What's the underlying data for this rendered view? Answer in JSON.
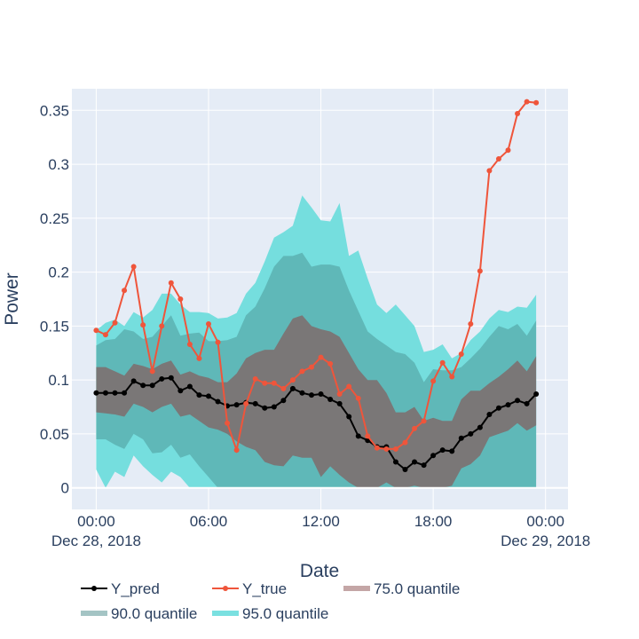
{
  "chart_data": {
    "type": "line",
    "xlabel": "Date",
    "ylabel": "Power",
    "ylim": [
      -0.02,
      0.37
    ],
    "xlim_hours": [
      -1.3,
      25.2
    ],
    "y_ticks": [
      "0",
      "0.05",
      "0.1",
      "0.15",
      "0.2",
      "0.25",
      "0.3",
      "0.35"
    ],
    "x_ticks": [
      {
        "line1": "00:00",
        "line2": "Dec 28, 2018"
      },
      {
        "line1": "06:00",
        "line2": ""
      },
      {
        "line1": "12:00",
        "line2": ""
      },
      {
        "line1": "18:00",
        "line2": ""
      },
      {
        "line1": "00:00",
        "line2": "Dec 29, 2018"
      }
    ],
    "x_hours": [
      0,
      0.5,
      1,
      1.5,
      2,
      2.5,
      3,
      3.5,
      4,
      4.5,
      5,
      5.5,
      6,
      6.5,
      7,
      7.5,
      8,
      8.5,
      9,
      9.5,
      10,
      10.5,
      11,
      11.5,
      12,
      12.5,
      13,
      13.5,
      14,
      14.5,
      15,
      15.5,
      16,
      16.5,
      17,
      17.5,
      18,
      18.5,
      19,
      19.5,
      20,
      20.5,
      21,
      21.5,
      22,
      22.5,
      23,
      23.5
    ],
    "series": [
      {
        "name": "Y_pred",
        "color": "#000000",
        "values": [
          0.088,
          0.088,
          0.088,
          0.088,
          0.099,
          0.095,
          0.095,
          0.101,
          0.102,
          0.09,
          0.094,
          0.086,
          0.085,
          0.08,
          0.076,
          0.077,
          0.079,
          0.078,
          0.074,
          0.075,
          0.081,
          0.092,
          0.088,
          0.086,
          0.087,
          0.082,
          0.078,
          0.066,
          0.048,
          0.044,
          0.038,
          0.038,
          0.024,
          0.017,
          0.024,
          0.021,
          0.03,
          0.035,
          0.034,
          0.046,
          0.05,
          0.056,
          0.068,
          0.074,
          0.077,
          0.081,
          0.078,
          0.087
        ]
      },
      {
        "name": "Y_true",
        "color": "#ef553b",
        "values": [
          0.146,
          0.142,
          0.153,
          0.183,
          0.205,
          0.151,
          0.108,
          0.15,
          0.19,
          0.175,
          0.133,
          0.12,
          0.152,
          0.135,
          0.06,
          0.035,
          0.078,
          0.101,
          0.097,
          0.097,
          0.092,
          0.1,
          0.108,
          0.112,
          0.121,
          0.115,
          0.087,
          0.094,
          0.083,
          0.048,
          0.037,
          0.036,
          0.036,
          0.042,
          0.055,
          0.062,
          0.099,
          0.116,
          0.103,
          0.124,
          0.152,
          0.201,
          0.294,
          0.305,
          0.313,
          0.347,
          0.358,
          0.357
        ]
      }
    ],
    "bands": [
      {
        "name": "95.0 quantile",
        "color": "#75dede",
        "upper": [
          0.146,
          0.153,
          0.156,
          0.15,
          0.163,
          0.158,
          0.165,
          0.18,
          0.18,
          0.17,
          0.163,
          0.163,
          0.162,
          0.157,
          0.158,
          0.162,
          0.18,
          0.19,
          0.21,
          0.232,
          0.237,
          0.243,
          0.271,
          0.26,
          0.248,
          0.247,
          0.264,
          0.215,
          0.22,
          0.194,
          0.17,
          0.162,
          0.17,
          0.16,
          0.15,
          0.126,
          0.128,
          0.133,
          0.12,
          0.125,
          0.137,
          0.145,
          0.157,
          0.165,
          0.163,
          0.168,
          0.167,
          0.179
        ],
        "lower": [
          0.017,
          0.0,
          0.015,
          0.01,
          0.03,
          0.02,
          0.012,
          0.005,
          0.015,
          0.01,
          0.0,
          0.0,
          0.0,
          0.0,
          0.0,
          0.0,
          0.0,
          0.0,
          0.0,
          0.0,
          0.0,
          0.0,
          0.0,
          0.0,
          0.0,
          0.0,
          0.0,
          0.0,
          0.0,
          0.0,
          0.0,
          0.0,
          0.0,
          0.0,
          0.0,
          0.0,
          0.0,
          0.0,
          0.0,
          0.0,
          0.0,
          0.0,
          0.0,
          0.0,
          0.0,
          0.0,
          0.0,
          0.008
        ]
      },
      {
        "name": "90.0 quantile",
        "color": "#5fb8b8",
        "upper": [
          0.132,
          0.137,
          0.138,
          0.147,
          0.145,
          0.138,
          0.14,
          0.15,
          0.16,
          0.141,
          0.143,
          0.144,
          0.136,
          0.136,
          0.137,
          0.14,
          0.16,
          0.168,
          0.185,
          0.205,
          0.215,
          0.215,
          0.218,
          0.205,
          0.207,
          0.207,
          0.205,
          0.183,
          0.164,
          0.145,
          0.138,
          0.132,
          0.126,
          0.124,
          0.116,
          0.098,
          0.11,
          0.109,
          0.109,
          0.112,
          0.12,
          0.129,
          0.14,
          0.15,
          0.147,
          0.152,
          0.141,
          0.155
        ],
        "lower": [
          0.045,
          0.045,
          0.04,
          0.036,
          0.05,
          0.045,
          0.032,
          0.033,
          0.04,
          0.028,
          0.031,
          0.02,
          0.01,
          0.0,
          0.0,
          0.0,
          0.0,
          0.0,
          0.0,
          0.0,
          0.0,
          0.0,
          0.0,
          0.0,
          0.0,
          0.0,
          0.0,
          0.0,
          0.0,
          0.0,
          0.0,
          0.0,
          0.0,
          0.0,
          0.0,
          0.0,
          0.0,
          0.0,
          0.0,
          0.0,
          0.0,
          0.0,
          0.0,
          0.0,
          0.0,
          0.0,
          0.0,
          0.0
        ]
      },
      {
        "name": "75.0 quantile",
        "color": "#7a7777",
        "upper": [
          0.112,
          0.112,
          0.108,
          0.104,
          0.115,
          0.113,
          0.11,
          0.115,
          0.118,
          0.105,
          0.108,
          0.104,
          0.102,
          0.098,
          0.098,
          0.106,
          0.12,
          0.125,
          0.128,
          0.128,
          0.143,
          0.157,
          0.16,
          0.15,
          0.147,
          0.145,
          0.14,
          0.125,
          0.11,
          0.1,
          0.1,
          0.088,
          0.07,
          0.07,
          0.075,
          0.062,
          0.065,
          0.062,
          0.062,
          0.082,
          0.09,
          0.09,
          0.097,
          0.103,
          0.11,
          0.118,
          0.108,
          0.122
        ],
        "lower": [
          0.07,
          0.069,
          0.068,
          0.066,
          0.078,
          0.075,
          0.07,
          0.075,
          0.078,
          0.066,
          0.068,
          0.062,
          0.056,
          0.054,
          0.05,
          0.043,
          0.038,
          0.035,
          0.024,
          0.021,
          0.02,
          0.03,
          0.028,
          0.028,
          0.01,
          0.02,
          0.012,
          0.005,
          0.0,
          0.0,
          0.0,
          0.005,
          0.0,
          0.0,
          0.002,
          0.0,
          0.0,
          0.0,
          0.002,
          0.018,
          0.022,
          0.03,
          0.047,
          0.05,
          0.053,
          0.06,
          0.053,
          0.058
        ]
      }
    ],
    "legend": [
      {
        "label": "Y_pred",
        "color": "#000000",
        "kind": "line-marker"
      },
      {
        "label": "Y_true",
        "color": "#ef553b",
        "kind": "line-marker"
      },
      {
        "label": "75.0 quantile",
        "color": "#c4a6a6",
        "kind": "bar"
      },
      {
        "label": "90.0 quantile",
        "color": "#a4c4c4",
        "kind": "bar"
      },
      {
        "label": "95.0 quantile",
        "color": "#7ae0e0",
        "kind": "bar"
      }
    ],
    "legend_position": "bottom",
    "grid": true,
    "plot_bg": "#e5ecf6",
    "grid_color": "#ffffff"
  }
}
